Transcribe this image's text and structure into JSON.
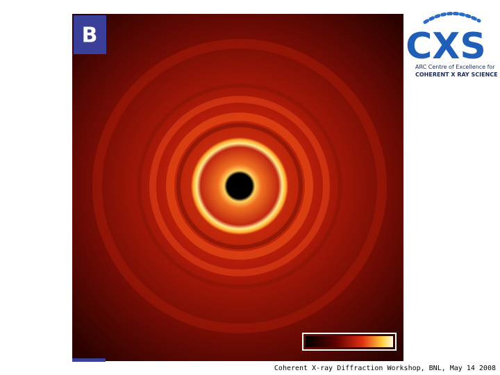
{
  "panel": {
    "label": "B"
  },
  "logo": {
    "mark": "CXS",
    "line1": "ARC Centre of Excellence for",
    "line2": "COHERENT X RAY SCIENCE"
  },
  "footer": {
    "text": "Coherent X-ray Diffraction Workshop, BNL, May 14 2008"
  }
}
